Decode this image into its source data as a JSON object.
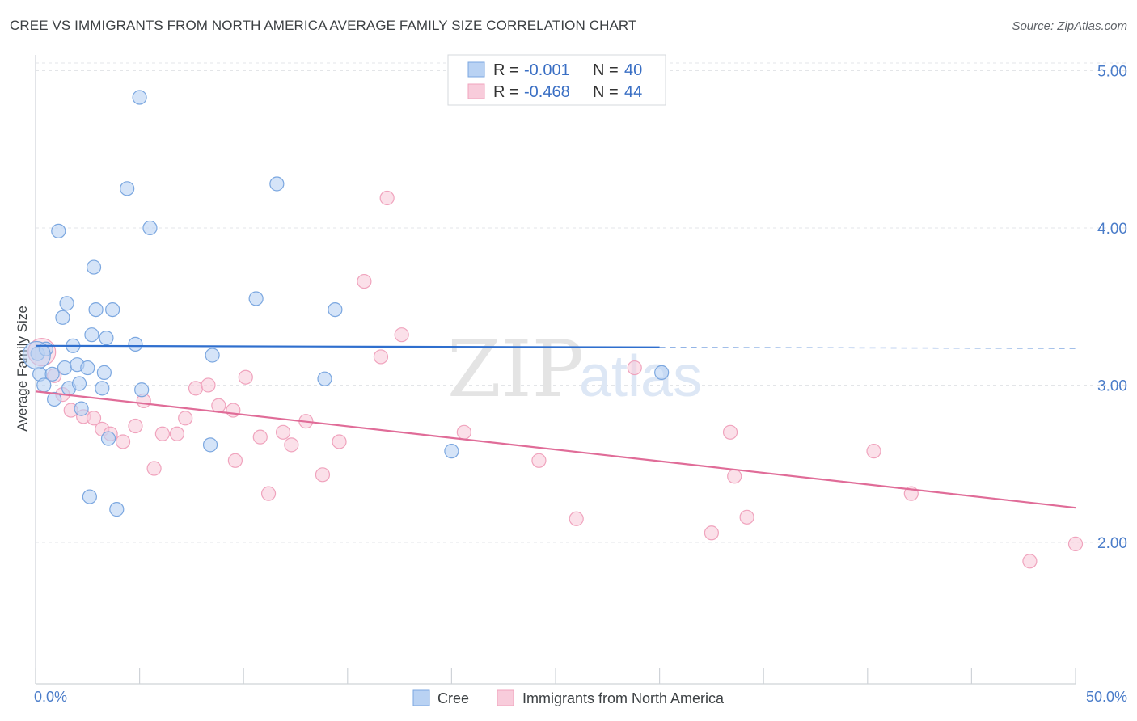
{
  "title": "CREE VS IMMIGRANTS FROM NORTH AMERICA AVERAGE FAMILY SIZE CORRELATION CHART",
  "source": "Source: ZipAtlas.com",
  "watermark": {
    "zip": "ZIP",
    "atlas": "atlas"
  },
  "stats": [
    {
      "r_label": "R =",
      "r_value": "-0.001",
      "n_label": "N =",
      "n_value": "40"
    },
    {
      "r_label": "R =",
      "r_value": "-0.468",
      "n_label": "N =",
      "n_value": "44"
    }
  ],
  "legend": [
    {
      "label": "Cree"
    },
    {
      "label": "Immigrants from North America"
    }
  ],
  "chart_data": {
    "type": "scatter",
    "title": "CREE VS IMMIGRANTS FROM NORTH AMERICA AVERAGE FAMILY SIZE CORRELATION CHART",
    "xlabel": "",
    "ylabel": "Average Family Size",
    "x_unit": "%",
    "xlim": [
      0,
      50
    ],
    "ylim": [
      1.1,
      5.1
    ],
    "x_tick_labels": [
      "0.0%",
      "50.0%"
    ],
    "y_ticks": [
      2.0,
      3.0,
      4.0,
      5.0
    ],
    "y_tick_labels": [
      "2.00",
      "3.00",
      "4.00",
      "5.00"
    ],
    "grid": true,
    "legend_position": "bottom",
    "series": [
      {
        "name": "Cree",
        "color": "#7ba7e0",
        "fill": "#b9d2f3",
        "trend_color": "#2f6fce",
        "trend": {
          "x": [
            0,
            30
          ],
          "y": [
            3.25,
            3.24
          ],
          "dashed_extension_to": 50
        },
        "points": [
          [
            0.1,
            3.2
          ],
          [
            0.2,
            3.07
          ],
          [
            0.4,
            3.0
          ],
          [
            0.5,
            3.23
          ],
          [
            0.8,
            3.07
          ],
          [
            0.9,
            2.91
          ],
          [
            1.1,
            3.98
          ],
          [
            1.3,
            3.43
          ],
          [
            1.4,
            3.11
          ],
          [
            1.5,
            3.52
          ],
          [
            1.6,
            2.98
          ],
          [
            1.8,
            3.25
          ],
          [
            2.0,
            3.13
          ],
          [
            2.1,
            3.01
          ],
          [
            2.2,
            2.85
          ],
          [
            2.5,
            3.11
          ],
          [
            2.6,
            2.29
          ],
          [
            2.7,
            3.32
          ],
          [
            2.8,
            3.75
          ],
          [
            2.9,
            3.48
          ],
          [
            3.2,
            2.98
          ],
          [
            3.3,
            3.08
          ],
          [
            3.4,
            3.3
          ],
          [
            3.5,
            2.66
          ],
          [
            3.7,
            3.48
          ],
          [
            3.9,
            2.21
          ],
          [
            4.4,
            4.25
          ],
          [
            4.8,
            3.26
          ],
          [
            5.0,
            4.83
          ],
          [
            5.1,
            2.97
          ],
          [
            5.5,
            4.0
          ],
          [
            8.4,
            2.62
          ],
          [
            8.5,
            3.19
          ],
          [
            10.6,
            3.55
          ],
          [
            11.6,
            4.28
          ],
          [
            13.9,
            3.04
          ],
          [
            14.4,
            3.48
          ],
          [
            20.0,
            2.58
          ],
          [
            30.1,
            3.08
          ],
          [
            0.05,
            3.19
          ]
        ]
      },
      {
        "name": "Immigrants from North America",
        "color": "#f0a3bd",
        "fill": "#f8ccdb",
        "trend_color": "#e06c98",
        "trend": {
          "x": [
            0,
            50
          ],
          "y": [
            2.96,
            2.22
          ]
        },
        "points": [
          [
            0.3,
            3.21
          ],
          [
            0.9,
            3.06
          ],
          [
            1.3,
            2.94
          ],
          [
            1.7,
            2.84
          ],
          [
            2.3,
            2.8
          ],
          [
            2.8,
            2.79
          ],
          [
            3.2,
            2.72
          ],
          [
            3.6,
            2.69
          ],
          [
            4.2,
            2.64
          ],
          [
            4.8,
            2.74
          ],
          [
            5.2,
            2.9
          ],
          [
            5.7,
            2.47
          ],
          [
            6.1,
            2.69
          ],
          [
            6.8,
            2.69
          ],
          [
            7.2,
            2.79
          ],
          [
            7.7,
            2.98
          ],
          [
            8.3,
            3.0
          ],
          [
            8.8,
            2.87
          ],
          [
            9.5,
            2.84
          ],
          [
            9.6,
            2.52
          ],
          [
            10.1,
            3.05
          ],
          [
            10.8,
            2.67
          ],
          [
            11.2,
            2.31
          ],
          [
            11.9,
            2.7
          ],
          [
            12.3,
            2.62
          ],
          [
            13.0,
            2.77
          ],
          [
            13.8,
            2.43
          ],
          [
            14.6,
            2.64
          ],
          [
            15.8,
            3.66
          ],
          [
            16.6,
            3.18
          ],
          [
            16.9,
            4.19
          ],
          [
            17.6,
            3.32
          ],
          [
            20.6,
            2.7
          ],
          [
            24.2,
            2.52
          ],
          [
            26.0,
            2.15
          ],
          [
            28.8,
            3.11
          ],
          [
            32.5,
            2.06
          ],
          [
            33.4,
            2.7
          ],
          [
            33.6,
            2.42
          ],
          [
            34.2,
            2.16
          ],
          [
            40.3,
            2.58
          ],
          [
            42.1,
            2.31
          ],
          [
            47.8,
            1.88
          ],
          [
            50.0,
            1.99
          ]
        ]
      }
    ]
  }
}
